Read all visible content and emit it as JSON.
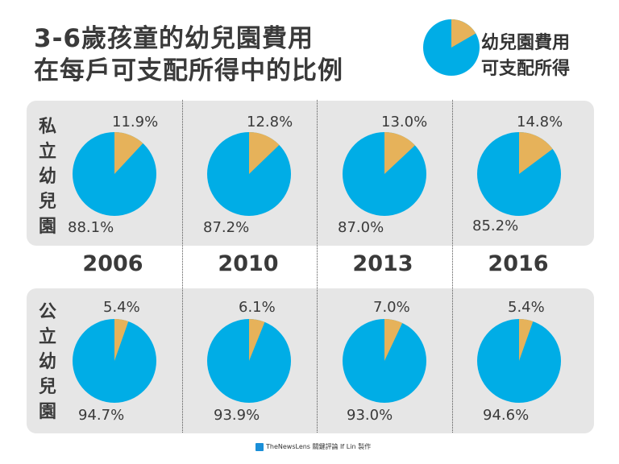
{
  "title": {
    "line1": "3-6歲孩童的幼兒園費用",
    "line2": "在每戶可支配所得中的比例"
  },
  "legend": {
    "fee_label": "幼兒園費用",
    "income_label": "可支配所得"
  },
  "colors": {
    "fee": "#e6b25a",
    "income": "#00ade6"
  },
  "rows": [
    {
      "label_chars": [
        "私",
        "立",
        "幼",
        "兒",
        "園"
      ]
    },
    {
      "label_chars": [
        "公",
        "立",
        "幼",
        "兒",
        "園"
      ]
    }
  ],
  "footer": "TheNewsLens 關鍵評論 If Lin 製作",
  "chart_data": [
    {
      "type": "pie",
      "group": "私立幼兒園",
      "categories": [
        "2006",
        "2010",
        "2013",
        "2016"
      ],
      "series": [
        {
          "name": "幼兒園費用",
          "values": [
            11.9,
            12.8,
            13.0,
            14.8
          ],
          "labels": [
            "11.9%",
            "12.8%",
            "13.0%",
            "14.8%"
          ]
        },
        {
          "name": "可支配所得",
          "values": [
            88.1,
            87.2,
            87.0,
            85.2
          ],
          "labels": [
            "88.1%",
            "87.2%",
            "87.0%",
            "85.2%"
          ]
        }
      ]
    },
    {
      "type": "pie",
      "group": "公立幼兒園",
      "categories": [
        "2006",
        "2010",
        "2013",
        "2016"
      ],
      "series": [
        {
          "name": "幼兒園費用",
          "values": [
            5.4,
            6.1,
            7.0,
            5.4
          ],
          "labels": [
            "5.4%",
            "6.1%",
            "7.0%",
            "5.4%"
          ]
        },
        {
          "name": "可支配所得",
          "values": [
            94.7,
            93.9,
            93.0,
            94.6
          ],
          "labels": [
            "94.7%",
            "93.9%",
            "93.0%",
            "94.6%"
          ]
        }
      ]
    }
  ]
}
